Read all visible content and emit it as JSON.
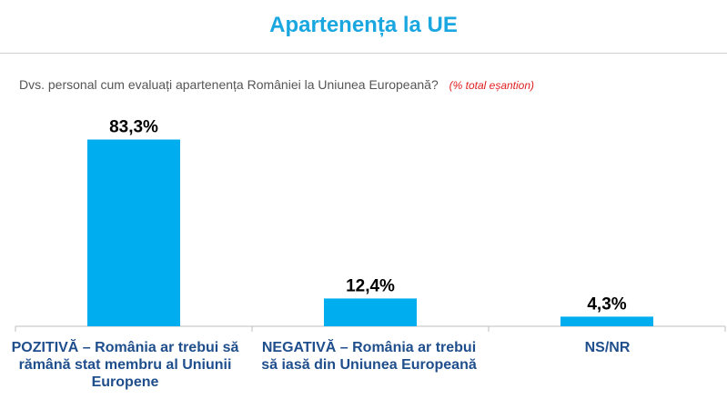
{
  "header": {
    "title": "Apartenența la UE"
  },
  "question": {
    "text": "Dvs. personal cum evaluați apartenența României la Uniunea Europeană?",
    "note": "(% total eșantion)"
  },
  "colors": {
    "title": "#1aa7e0",
    "bar": "#00adef",
    "category_label": "#1f4e8c",
    "note": "#e02020"
  },
  "chart_data": {
    "type": "bar",
    "title": "",
    "xlabel": "",
    "ylabel": "",
    "ylim": [
      0,
      90
    ],
    "grid": false,
    "categories": [
      "POZITIVĂ – România ar trebui să rămână stat membru al Uniunii Europene",
      "NEGATIVĂ – România ar trebui să iasă din Uniunea Europeană",
      "NS/NR"
    ],
    "values": [
      83.3,
      12.4,
      4.3
    ],
    "data_labels": [
      "83,3%",
      "12,4%",
      "4,3%"
    ]
  }
}
